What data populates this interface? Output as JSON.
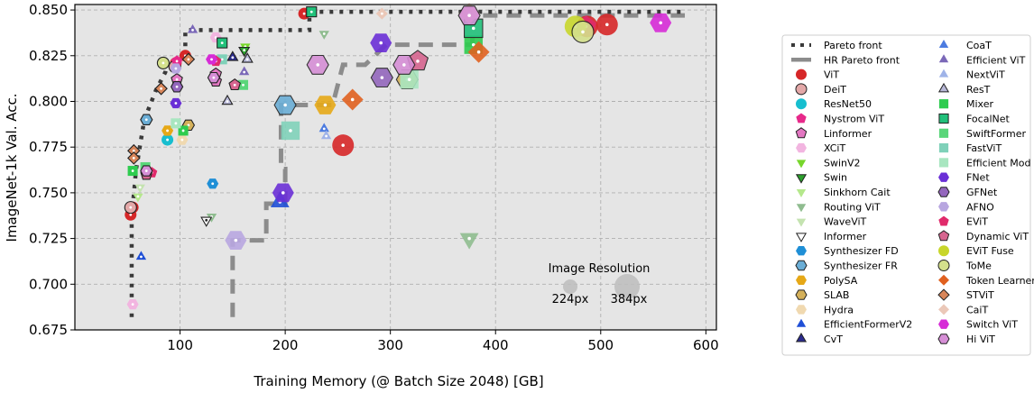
{
  "chart_data": {
    "type": "scatter",
    "xlabel": "Training Memory (@ Batch Size 2048) [GB]",
    "ylabel": "ImageNet-1k Val. Acc.",
    "xlim": [
      0,
      610
    ],
    "ylim": [
      0.675,
      0.853
    ],
    "x_ticks": [
      100,
      200,
      300,
      400,
      500,
      600
    ],
    "y_ticks": [
      0.675,
      0.7,
      0.725,
      0.75,
      0.775,
      0.8,
      0.825,
      0.85
    ],
    "grid": true,
    "legend_placement": "right, outside plot",
    "resolution_legend": {
      "title": "Image Resolution",
      "items": [
        "224px",
        "384px"
      ]
    },
    "pareto_front": {
      "name": "Pareto front",
      "points": [
        [
          54,
          0.682
        ],
        [
          54,
          0.737
        ],
        [
          57,
          0.755
        ],
        [
          58,
          0.762
        ],
        [
          66,
          0.79
        ],
        [
          77,
          0.806
        ],
        [
          86,
          0.816
        ],
        [
          88,
          0.821
        ],
        [
          96,
          0.823
        ],
        [
          105,
          0.826
        ],
        [
          105,
          0.839
        ],
        [
          223,
          0.839
        ],
        [
          223,
          0.849
        ],
        [
          580,
          0.849
        ]
      ]
    },
    "hr_pareto_front": {
      "name": "HR Pareto front",
      "points": [
        [
          150,
          0.682
        ],
        [
          150,
          0.724
        ],
        [
          182,
          0.724
        ],
        [
          182,
          0.744
        ],
        [
          200,
          0.744
        ],
        [
          200,
          0.763
        ],
        [
          196,
          0.763
        ],
        [
          196,
          0.798
        ],
        [
          232,
          0.798
        ],
        [
          245,
          0.798
        ],
        [
          255,
          0.82
        ],
        [
          276,
          0.82
        ],
        [
          296,
          0.831
        ],
        [
          340,
          0.831
        ],
        [
          378,
          0.831
        ],
        [
          378,
          0.847
        ],
        [
          580,
          0.847
        ]
      ]
    },
    "series": [
      {
        "name": "ViT",
        "color": "#d62728",
        "marker": "circle",
        "points": [
          [
            53,
            0.738,
            "s"
          ],
          [
            55,
            0.742,
            "s"
          ],
          [
            96,
            0.821,
            "s"
          ],
          [
            105,
            0.825,
            "s"
          ],
          [
            218,
            0.848,
            "s"
          ],
          [
            255,
            0.776,
            "l"
          ],
          [
            487,
            0.841,
            "l"
          ],
          [
            506,
            0.842,
            "l"
          ]
        ]
      },
      {
        "name": "DeiT",
        "color": "#e3a8a8",
        "marker": "circle",
        "points": [
          [
            53,
            0.742,
            "s"
          ],
          [
            95,
            0.819,
            "s"
          ]
        ]
      },
      {
        "name": "ResNet50",
        "color": "#17becf",
        "marker": "circle",
        "points": [
          [
            88,
            0.779,
            "s"
          ]
        ]
      },
      {
        "name": "Nystrom ViT",
        "color": "#e7298a",
        "marker": "pentagon",
        "points": [
          [
            97,
            0.822,
            "s"
          ]
        ]
      },
      {
        "name": "Linformer",
        "color": "#e377c2",
        "marker": "pentagon",
        "points": [
          [
            97,
            0.812,
            "s"
          ],
          [
            134,
            0.811,
            "s"
          ],
          [
            134,
            0.815,
            "s"
          ]
        ]
      },
      {
        "name": "XCiT",
        "color": "#f2b5e0",
        "marker": "hexagon",
        "points": [
          [
            55,
            0.689,
            "s"
          ],
          [
            134,
            0.835,
            "s"
          ]
        ]
      },
      {
        "name": "SwinV2",
        "color": "#77d62b",
        "marker": "triangle-down",
        "points": [
          [
            162,
            0.83,
            "s"
          ]
        ]
      },
      {
        "name": "Swin",
        "color": "#2ca02c",
        "marker": "triangle-down",
        "points": [
          [
            161,
            0.828,
            "s"
          ]
        ]
      },
      {
        "name": "Sinkhorn Cait",
        "color": "#b5e88c",
        "marker": "triangle-down",
        "points": [
          [
            60,
            0.748,
            "s"
          ]
        ]
      },
      {
        "name": "Routing ViT",
        "color": "#8fbc8f",
        "marker": "triangle-down",
        "points": [
          [
            130,
            0.737,
            "s"
          ],
          [
            237,
            0.837,
            "s"
          ],
          [
            375,
            0.725,
            "l"
          ]
        ]
      },
      {
        "name": "WaveViT",
        "color": "#c4e3b0",
        "marker": "triangle-down",
        "points": [
          [
            62,
            0.753,
            "s"
          ]
        ]
      },
      {
        "name": "Informer",
        "color": "#ffffff",
        "marker": "triangle-down",
        "points": [
          [
            125,
            0.735,
            "s"
          ]
        ]
      },
      {
        "name": "Synthesizer FD",
        "color": "#1f8fd6",
        "marker": "hexagon",
        "points": [
          [
            131,
            0.755,
            "s"
          ]
        ]
      },
      {
        "name": "Synthesizer FR",
        "color": "#6baed6",
        "marker": "hexagon",
        "points": [
          [
            68,
            0.79,
            "s"
          ],
          [
            200,
            0.798,
            "l"
          ]
        ]
      },
      {
        "name": "PolySA",
        "color": "#e6a817",
        "marker": "hexagon",
        "points": [
          [
            88,
            0.784,
            "s"
          ],
          [
            238,
            0.798,
            "l"
          ]
        ]
      },
      {
        "name": "SLAB",
        "color": "#d4b05a",
        "marker": "hexagon",
        "points": [
          [
            108,
            0.787,
            "s"
          ],
          [
            316,
            0.812,
            "l"
          ]
        ]
      },
      {
        "name": "Hydra",
        "color": "#f0d9b0",
        "marker": "hexagon",
        "points": [
          [
            102,
            0.779,
            "s"
          ]
        ]
      },
      {
        "name": "EfficientFormerV2",
        "color": "#1f4fd6",
        "marker": "triangle-up",
        "points": [
          [
            63,
            0.715,
            "s"
          ],
          [
            195,
            0.745,
            "l"
          ]
        ]
      },
      {
        "name": "CvT",
        "color": "#2b2b8f",
        "marker": "triangle-up",
        "points": [
          [
            150,
            0.824,
            "s"
          ]
        ]
      },
      {
        "name": "CoaT",
        "color": "#4c7be0",
        "marker": "triangle-up",
        "points": [
          [
            237,
            0.785,
            "s"
          ]
        ]
      },
      {
        "name": "Efficient ViT",
        "color": "#7b68b8",
        "marker": "triangle-up",
        "points": [
          [
            112,
            0.839,
            "s"
          ],
          [
            161,
            0.816,
            "s"
          ]
        ]
      },
      {
        "name": "NextViT",
        "color": "#9fb3e8",
        "marker": "triangle-up",
        "points": [
          [
            239,
            0.781,
            "s"
          ]
        ]
      },
      {
        "name": "ResT",
        "color": "#b8b8d8",
        "marker": "triangle-up",
        "points": [
          [
            145,
            0.8,
            "s"
          ],
          [
            164,
            0.823,
            "s"
          ]
        ]
      },
      {
        "name": "Mixer",
        "color": "#2ecc4f",
        "marker": "square",
        "points": [
          [
            55,
            0.762,
            "s"
          ],
          [
            103,
            0.784,
            "s"
          ],
          [
            379,
            0.831,
            "l"
          ]
        ]
      },
      {
        "name": "FocalNet",
        "color": "#21c07a",
        "marker": "square",
        "points": [
          [
            140,
            0.832,
            "s"
          ],
          [
            225,
            0.849,
            "s"
          ],
          [
            379,
            0.84,
            "l"
          ]
        ]
      },
      {
        "name": "SwiftFormer",
        "color": "#5ad67a",
        "marker": "square",
        "points": [
          [
            67,
            0.764,
            "s"
          ],
          [
            160,
            0.809,
            "s"
          ]
        ]
      },
      {
        "name": "FastViT",
        "color": "#7fd1b9",
        "marker": "square",
        "points": [
          [
            140,
            0.823,
            "s"
          ],
          [
            205,
            0.784,
            "l"
          ]
        ]
      },
      {
        "name": "Efficient Mod",
        "color": "#a8e6c0",
        "marker": "square",
        "points": [
          [
            96,
            0.788,
            "s"
          ],
          [
            318,
            0.812,
            "l"
          ]
        ]
      },
      {
        "name": "FNet",
        "color": "#6a2fd6",
        "marker": "hexagon",
        "points": [
          [
            96,
            0.799,
            "s"
          ],
          [
            198,
            0.75,
            "l"
          ],
          [
            291,
            0.832,
            "l"
          ]
        ]
      },
      {
        "name": "GFNet",
        "color": "#9467bd",
        "marker": "hexagon",
        "points": [
          [
            97,
            0.808,
            "s"
          ],
          [
            292,
            0.813,
            "l"
          ]
        ]
      },
      {
        "name": "AFNO",
        "color": "#b8a6e0",
        "marker": "hexagon",
        "points": [
          [
            96,
            0.818,
            "s"
          ],
          [
            153,
            0.724,
            "l"
          ]
        ]
      },
      {
        "name": "EViT",
        "color": "#e02a6b",
        "marker": "pentagon",
        "points": [
          [
            73,
            0.761,
            "s"
          ],
          [
            134,
            0.822,
            "s"
          ],
          [
            486,
            0.841,
            "l"
          ]
        ]
      },
      {
        "name": "Dynamic ViT",
        "color": "#d6658f",
        "marker": "pentagon",
        "points": [
          [
            68,
            0.76,
            "s"
          ],
          [
            152,
            0.809,
            "s"
          ],
          [
            326,
            0.822,
            "l"
          ]
        ]
      },
      {
        "name": "EViT Fuse",
        "color": "#c8d62b",
        "marker": "circle",
        "points": [
          [
            476,
            0.841,
            "l"
          ]
        ]
      },
      {
        "name": "ToMe",
        "color": "#d4e08c",
        "marker": "circle",
        "points": [
          [
            84,
            0.821,
            "s"
          ],
          [
            483,
            0.838,
            "l"
          ]
        ]
      },
      {
        "name": "Token Learner",
        "color": "#e0601f",
        "marker": "diamond",
        "points": [
          [
            264,
            0.801,
            "l"
          ],
          [
            384,
            0.827,
            "l"
          ]
        ]
      },
      {
        "name": "STViT",
        "color": "#d8865a",
        "marker": "diamond",
        "points": [
          [
            56,
            0.773,
            "s"
          ],
          [
            82,
            0.807,
            "s"
          ],
          [
            56,
            0.769,
            "s"
          ],
          [
            108,
            0.823,
            "s"
          ]
        ]
      },
      {
        "name": "CaiT",
        "color": "#ebc8b8",
        "marker": "diamond",
        "points": [
          [
            292,
            0.848,
            "s"
          ],
          [
            375,
            0.848,
            "l"
          ]
        ]
      },
      {
        "name": "Switch ViT",
        "color": "#d62bd6",
        "marker": "hexagon",
        "points": [
          [
            130,
            0.823,
            "s"
          ],
          [
            557,
            0.843,
            "l"
          ]
        ]
      },
      {
        "name": "Hi ViT",
        "color": "#d68fd6",
        "marker": "hexagon",
        "points": [
          [
            68,
            0.762,
            "s"
          ],
          [
            132,
            0.813,
            "s"
          ],
          [
            231,
            0.82,
            "l"
          ],
          [
            313,
            0.82,
            "l"
          ],
          [
            375,
            0.847,
            "l"
          ]
        ]
      }
    ]
  }
}
